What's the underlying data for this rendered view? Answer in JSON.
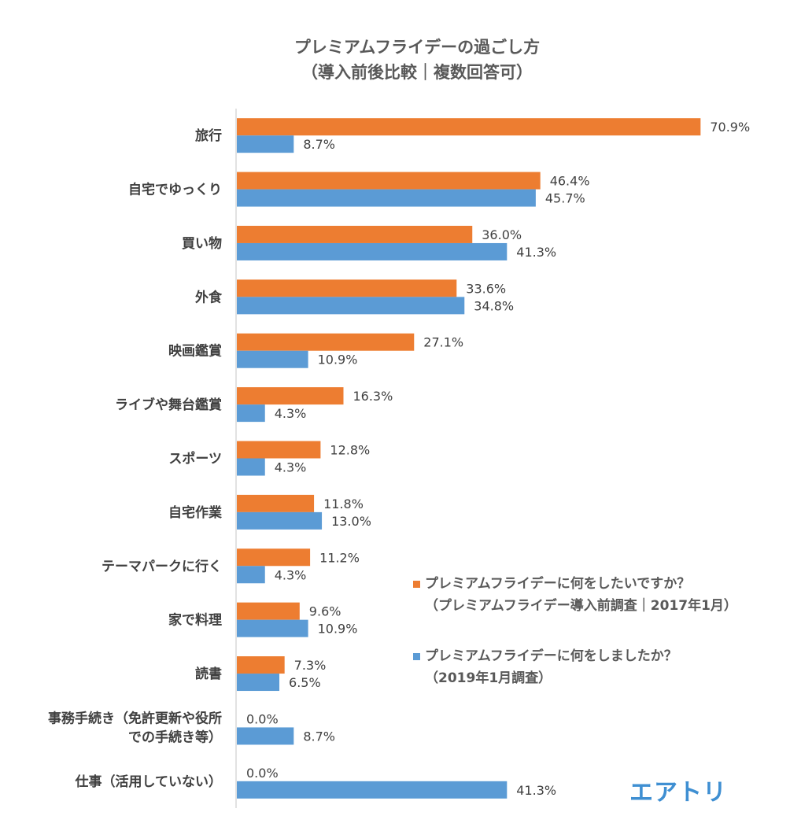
{
  "title": {
    "line1": "プレミアムフライデーの過ごし方",
    "line2": "（導入前後比較｜複数回答可）"
  },
  "colors": {
    "series_2017": "#ed7d31",
    "series_2019": "#5b9bd5",
    "axis": "#d9d9d9",
    "text": "#404040"
  },
  "chart_data": {
    "type": "bar",
    "orientation": "horizontal",
    "categories": [
      "旅行",
      "自宅でゆっくり",
      "買い物",
      "外食",
      "映画鑑賞",
      "ライブや舞台鑑賞",
      "スポーツ",
      "自宅作業",
      "テーマパークに行く",
      "家で料理",
      "読書",
      "事務手続き（免許更新や役所\nでの手続き等）",
      "仕事（活用していない）"
    ],
    "series": [
      {
        "name": "プレミアムフライデーに何をしたいですか？（プレミアムフライデー導入前調査｜2017年1月）",
        "values": [
          70.9,
          46.4,
          36.0,
          33.6,
          27.1,
          16.3,
          12.8,
          11.8,
          11.2,
          9.6,
          7.3,
          0.0,
          0.0
        ],
        "labels": [
          "70.9%",
          "46.4%",
          "36.0%",
          "33.6%",
          "27.1%",
          "16.3%",
          "12.8%",
          "11.8%",
          "11.2%",
          "9.6%",
          "7.3%",
          "0.0%",
          "0.0%"
        ]
      },
      {
        "name": "プレミアムフライデーに何をしましたか？（2019年1月調査）",
        "values": [
          8.7,
          45.7,
          41.3,
          34.8,
          10.9,
          4.3,
          4.3,
          13.0,
          4.3,
          10.9,
          6.5,
          8.7,
          41.3
        ],
        "labels": [
          "8.7%",
          "45.7%",
          "41.3%",
          "34.8%",
          "10.9%",
          "4.3%",
          "4.3%",
          "13.0%",
          "4.3%",
          "10.9%",
          "6.5%",
          "8.7%",
          "41.3%"
        ]
      }
    ],
    "xlim": [
      0,
      80
    ],
    "grid": false,
    "legend_position": "bottom-right"
  },
  "legend": {
    "item1_line1": "プレミアムフライデーに何をしたいですか？",
    "item1_line2": "（プレミアムフライデー導入前調査｜2017年1月）",
    "item2_line1": "プレミアムフライデーに何をしましたか？",
    "item2_line2": "（2019年1月調査）"
  },
  "logo": "エアトリ"
}
